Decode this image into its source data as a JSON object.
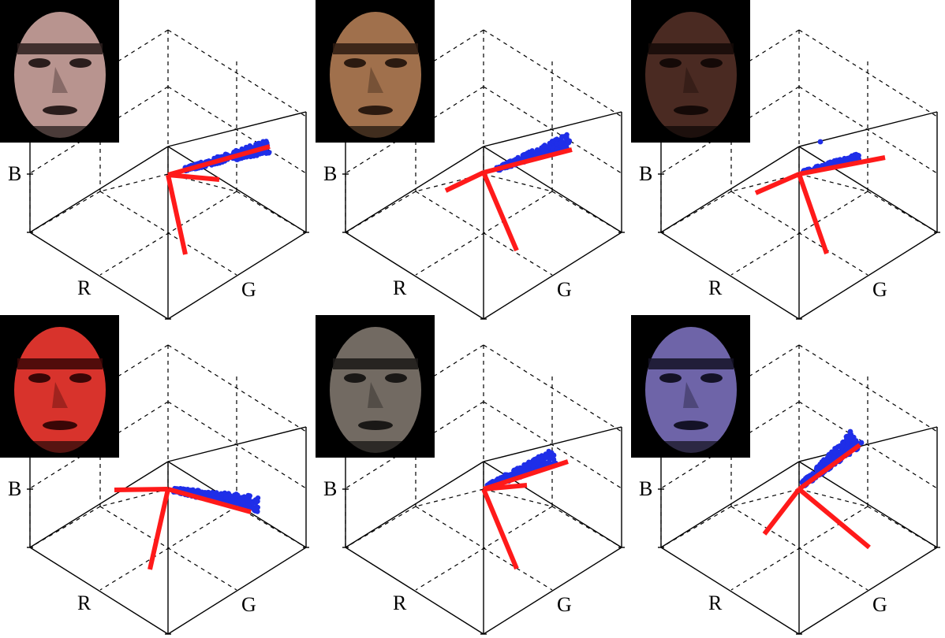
{
  "figure": {
    "panels": [
      {
        "id": "p1",
        "axis_labels": {
          "r": "R",
          "g": "G",
          "b": "B"
        },
        "face_tone": "#b8948f",
        "face_shadow": "#2a1d1c"
      },
      {
        "id": "p2",
        "axis_labels": {
          "r": "R",
          "g": "G",
          "b": "B"
        },
        "face_tone": "#a0704c",
        "face_shadow": "#2b1a10"
      },
      {
        "id": "p3",
        "axis_labels": {
          "r": "R",
          "g": "G",
          "b": "B"
        },
        "face_tone": "#4a2a22",
        "face_shadow": "#140907"
      },
      {
        "id": "p4",
        "axis_labels": {
          "r": "R",
          "g": "G",
          "b": "B"
        },
        "face_tone": "#d8332c",
        "face_shadow": "#3a0606"
      },
      {
        "id": "p5",
        "axis_labels": {
          "r": "R",
          "g": "G",
          "b": "B"
        },
        "face_tone": "#726a62",
        "face_shadow": "#1a1816"
      },
      {
        "id": "p6",
        "axis_labels": {
          "r": "R",
          "g": "G",
          "b": "B"
        },
        "face_tone": "#6e64a8",
        "face_shadow": "#141226"
      }
    ],
    "colors": {
      "axis_line": "#000000",
      "point_cloud": "#1f2ee8",
      "principal_axes": "#ff1a1a"
    }
  }
}
